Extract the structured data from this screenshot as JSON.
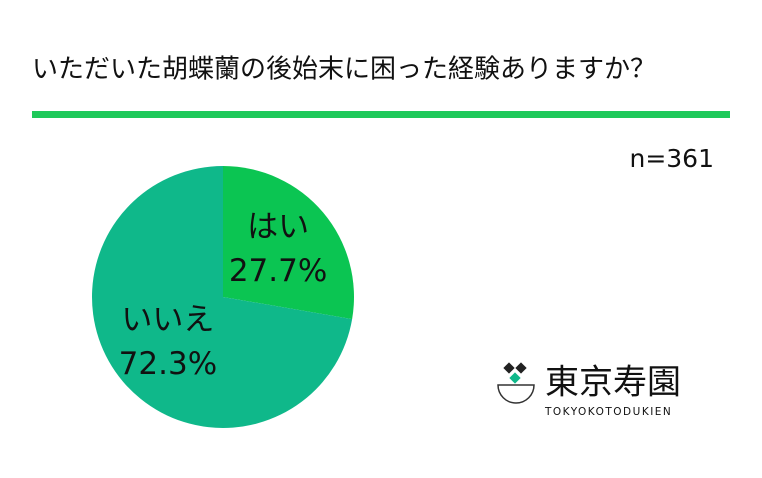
{
  "chart_data": {
    "type": "pie",
    "title": "いただいた胡蝶蘭の後始末に困った経験ありますか？",
    "annotation": "n=361",
    "categories": [
      "はい",
      "いいえ"
    ],
    "values": [
      27.7,
      72.3
    ],
    "value_labels": [
      "27.7%",
      "72.3%"
    ],
    "colors": [
      "#0bc552",
      "#0fb88a"
    ],
    "logo_text": "東京寿園",
    "logo_subtext": "TOKYOKOTODUKIEN"
  }
}
